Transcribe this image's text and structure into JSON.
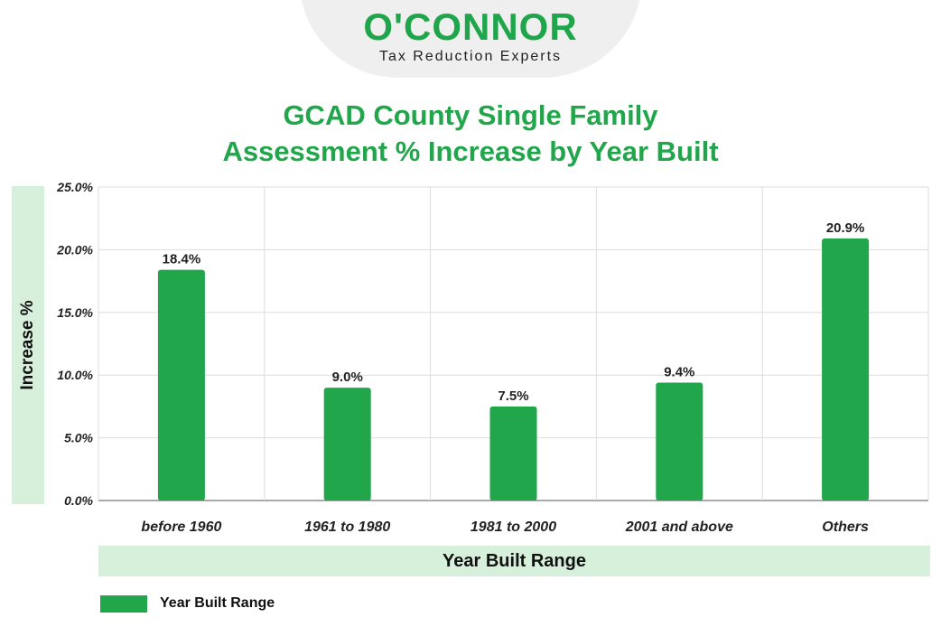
{
  "logo": {
    "brand": "O'CONNOR",
    "tagline": "Tax Reduction Experts"
  },
  "colors": {
    "bar": "#22a64b",
    "grid": "#dddddd",
    "band": "#d7f0dc",
    "title": "#22a64b"
  },
  "chart_data": {
    "type": "bar",
    "title": "GCAD County Single Family Assessment % Increase by Year Built",
    "title_lines": [
      "GCAD County Single Family",
      "Assessment % Increase by Year Built"
    ],
    "xlabel": "Year Built Range",
    "ylabel": "Increase %",
    "categories": [
      "before 1960",
      "1961 to 1980",
      "1981 to 2000",
      "2001 and above",
      "Others"
    ],
    "series": [
      {
        "name": "Year Built Range",
        "values": [
          18.4,
          9.0,
          7.5,
          9.4,
          20.9
        ]
      }
    ],
    "value_labels": [
      "18.4%",
      "9.0%",
      "7.5%",
      "9.4%",
      "20.9%"
    ],
    "ylim": [
      0,
      25
    ],
    "yticks": [
      0,
      5,
      10,
      15,
      20,
      25
    ],
    "ytick_labels": [
      "0.0%",
      "5.0%",
      "10.0%",
      "15.0%",
      "20.0%",
      "25.0%"
    ],
    "grid": true,
    "legend": "bottom-left"
  }
}
